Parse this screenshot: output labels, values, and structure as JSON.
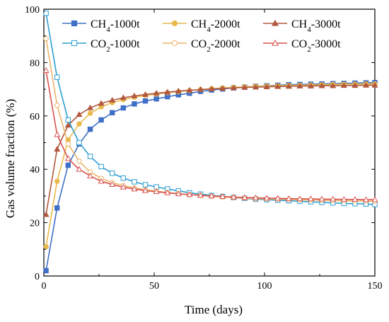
{
  "chart_data": {
    "type": "line",
    "xlabel": "Time (days)",
    "ylabel": "Gas volume fraction (%)",
    "xlim": [
      0,
      150
    ],
    "ylim": [
      0,
      100
    ],
    "xticks": [
      0,
      50,
      100,
      150
    ],
    "yticks": [
      0,
      20,
      40,
      60,
      80,
      100
    ],
    "grid": false,
    "legend_placement": "top",
    "x": [
      1,
      6,
      11,
      16,
      21,
      26,
      31,
      36,
      41,
      46,
      51,
      56,
      61,
      66,
      71,
      76,
      81,
      86,
      91,
      96,
      101,
      106,
      111,
      116,
      121,
      126,
      131,
      136,
      141,
      146,
      150
    ],
    "series": [
      {
        "name": "CH4-1000t",
        "base": "CH",
        "sub": "4",
        "suffix": "-1000t",
        "color": "#3f6fc6",
        "marker": "square",
        "filled": true,
        "values": [
          2,
          25.5,
          41.5,
          49.5,
          55,
          58.5,
          61.2,
          63,
          64.5,
          65.6,
          66.4,
          67.2,
          67.9,
          68.5,
          69.2,
          69.7,
          70.1,
          70.5,
          70.8,
          71.1,
          71.3,
          71.5,
          71.7,
          71.8,
          71.9,
          72,
          72.1,
          72.2,
          72.3,
          72.4,
          72.5
        ]
      },
      {
        "name": "CH4-2000t",
        "base": "CH",
        "sub": "4",
        "suffix": "-2000t",
        "color": "#e9b94c",
        "marker": "circle",
        "filled": true,
        "values": [
          11,
          35.5,
          51,
          57,
          61,
          63.4,
          65,
          66.1,
          67,
          67.7,
          68.2,
          68.7,
          69.1,
          69.5,
          69.9,
          70.2,
          70.5,
          70.7,
          70.9,
          71.1,
          71.2,
          71.3,
          71.4,
          71.5,
          71.6,
          71.7,
          71.8,
          71.9,
          71.9,
          72,
          72
        ]
      },
      {
        "name": "CH4-3000t",
        "base": "CH",
        "sub": "4",
        "suffix": "-3000t",
        "color": "#b2583f",
        "marker": "triangle",
        "filled": true,
        "values": [
          23,
          47.5,
          56.5,
          60.5,
          63,
          64.7,
          65.9,
          66.8,
          67.5,
          68,
          68.5,
          68.9,
          69.3,
          69.6,
          69.9,
          70.1,
          70.3,
          70.5,
          70.7,
          70.8,
          70.9,
          71,
          71.1,
          71.2,
          71.2,
          71.3,
          71.3,
          71.4,
          71.4,
          71.5,
          71.5
        ]
      },
      {
        "name": "CO2-1000t",
        "base": "CO",
        "sub": "2",
        "suffix": "-1000t",
        "color": "#2e9ed1",
        "marker": "square",
        "filled": false,
        "values": [
          98.5,
          74.5,
          58.5,
          50,
          44.8,
          41,
          38.5,
          36.7,
          35.3,
          34.2,
          33.4,
          32.6,
          31.9,
          31.2,
          30.7,
          30.2,
          29.8,
          29.4,
          29.1,
          28.8,
          28.6,
          28.4,
          28.2,
          28,
          27.8,
          27.6,
          27.4,
          27.2,
          27.1,
          27,
          26.8
        ]
      },
      {
        "name": "CO2-2000t",
        "base": "CO",
        "sub": "2",
        "suffix": "-2000t",
        "color": "#ebb36a",
        "marker": "circle",
        "filled": false,
        "values": [
          89,
          64,
          49.5,
          43,
          39,
          36.6,
          35,
          33.9,
          33,
          32.3,
          31.8,
          31.3,
          30.9,
          30.5,
          30.2,
          29.9,
          29.6,
          29.4,
          29.2,
          29,
          28.9,
          28.8,
          28.7,
          28.6,
          28.5,
          28.4,
          28.3,
          28.2,
          28.1,
          28.1,
          28
        ]
      },
      {
        "name": "CO2-3000t",
        "base": "CO",
        "sub": "2",
        "suffix": "-3000t",
        "color": "#d9534f",
        "marker": "triangle",
        "filled": false,
        "values": [
          77,
          53,
          44,
          40,
          37.5,
          35.5,
          34.3,
          33.3,
          32.6,
          32,
          31.6,
          31.2,
          30.8,
          30.5,
          30.2,
          30,
          29.8,
          29.6,
          29.4,
          29.3,
          29.2,
          29.1,
          29,
          28.9,
          28.9,
          28.8,
          28.8,
          28.7,
          28.7,
          28.6,
          28.6
        ]
      }
    ]
  }
}
